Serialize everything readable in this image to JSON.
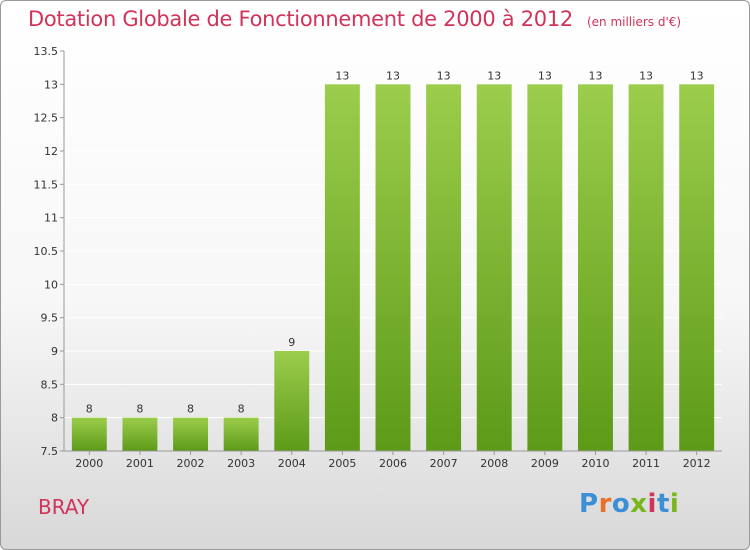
{
  "title": "Dotation Globale de Fonctionnement de 2000 à 2012",
  "unit": "(en milliers d'€)",
  "commune": "BRAY",
  "brand": {
    "letters": [
      "P",
      "r",
      "o",
      "x",
      "i",
      "t",
      "i"
    ],
    "colors": [
      "#3a8fd6",
      "#e8702a",
      "#3a8fd6",
      "#7ab51d",
      "#d2335a",
      "#3a8fd6",
      "#7ab51d"
    ]
  },
  "colors": {
    "bar_top": "#9ccd4c",
    "bar_bottom": "#5c9a18",
    "title": "#d2335a",
    "axis": "#999999",
    "grid": "#ffffff"
  },
  "chart_data": {
    "type": "bar",
    "categories": [
      "2000",
      "2001",
      "2002",
      "2003",
      "2004",
      "2005",
      "2006",
      "2007",
      "2008",
      "2009",
      "2010",
      "2011",
      "2012"
    ],
    "values": [
      8,
      8,
      8,
      8,
      9,
      13,
      13,
      13,
      13,
      13,
      13,
      13,
      13
    ],
    "value_labels": [
      "8",
      "8",
      "8",
      "8",
      "9",
      "13",
      "13",
      "13",
      "13",
      "13",
      "13",
      "13",
      "13"
    ],
    "yticks": [
      "7.5",
      "8",
      "8.5",
      "9",
      "9.5",
      "10",
      "10.5",
      "11",
      "11.5",
      "12",
      "12.5",
      "13",
      "13.5"
    ],
    "ylim": [
      7.5,
      13.5
    ],
    "grid": true
  }
}
